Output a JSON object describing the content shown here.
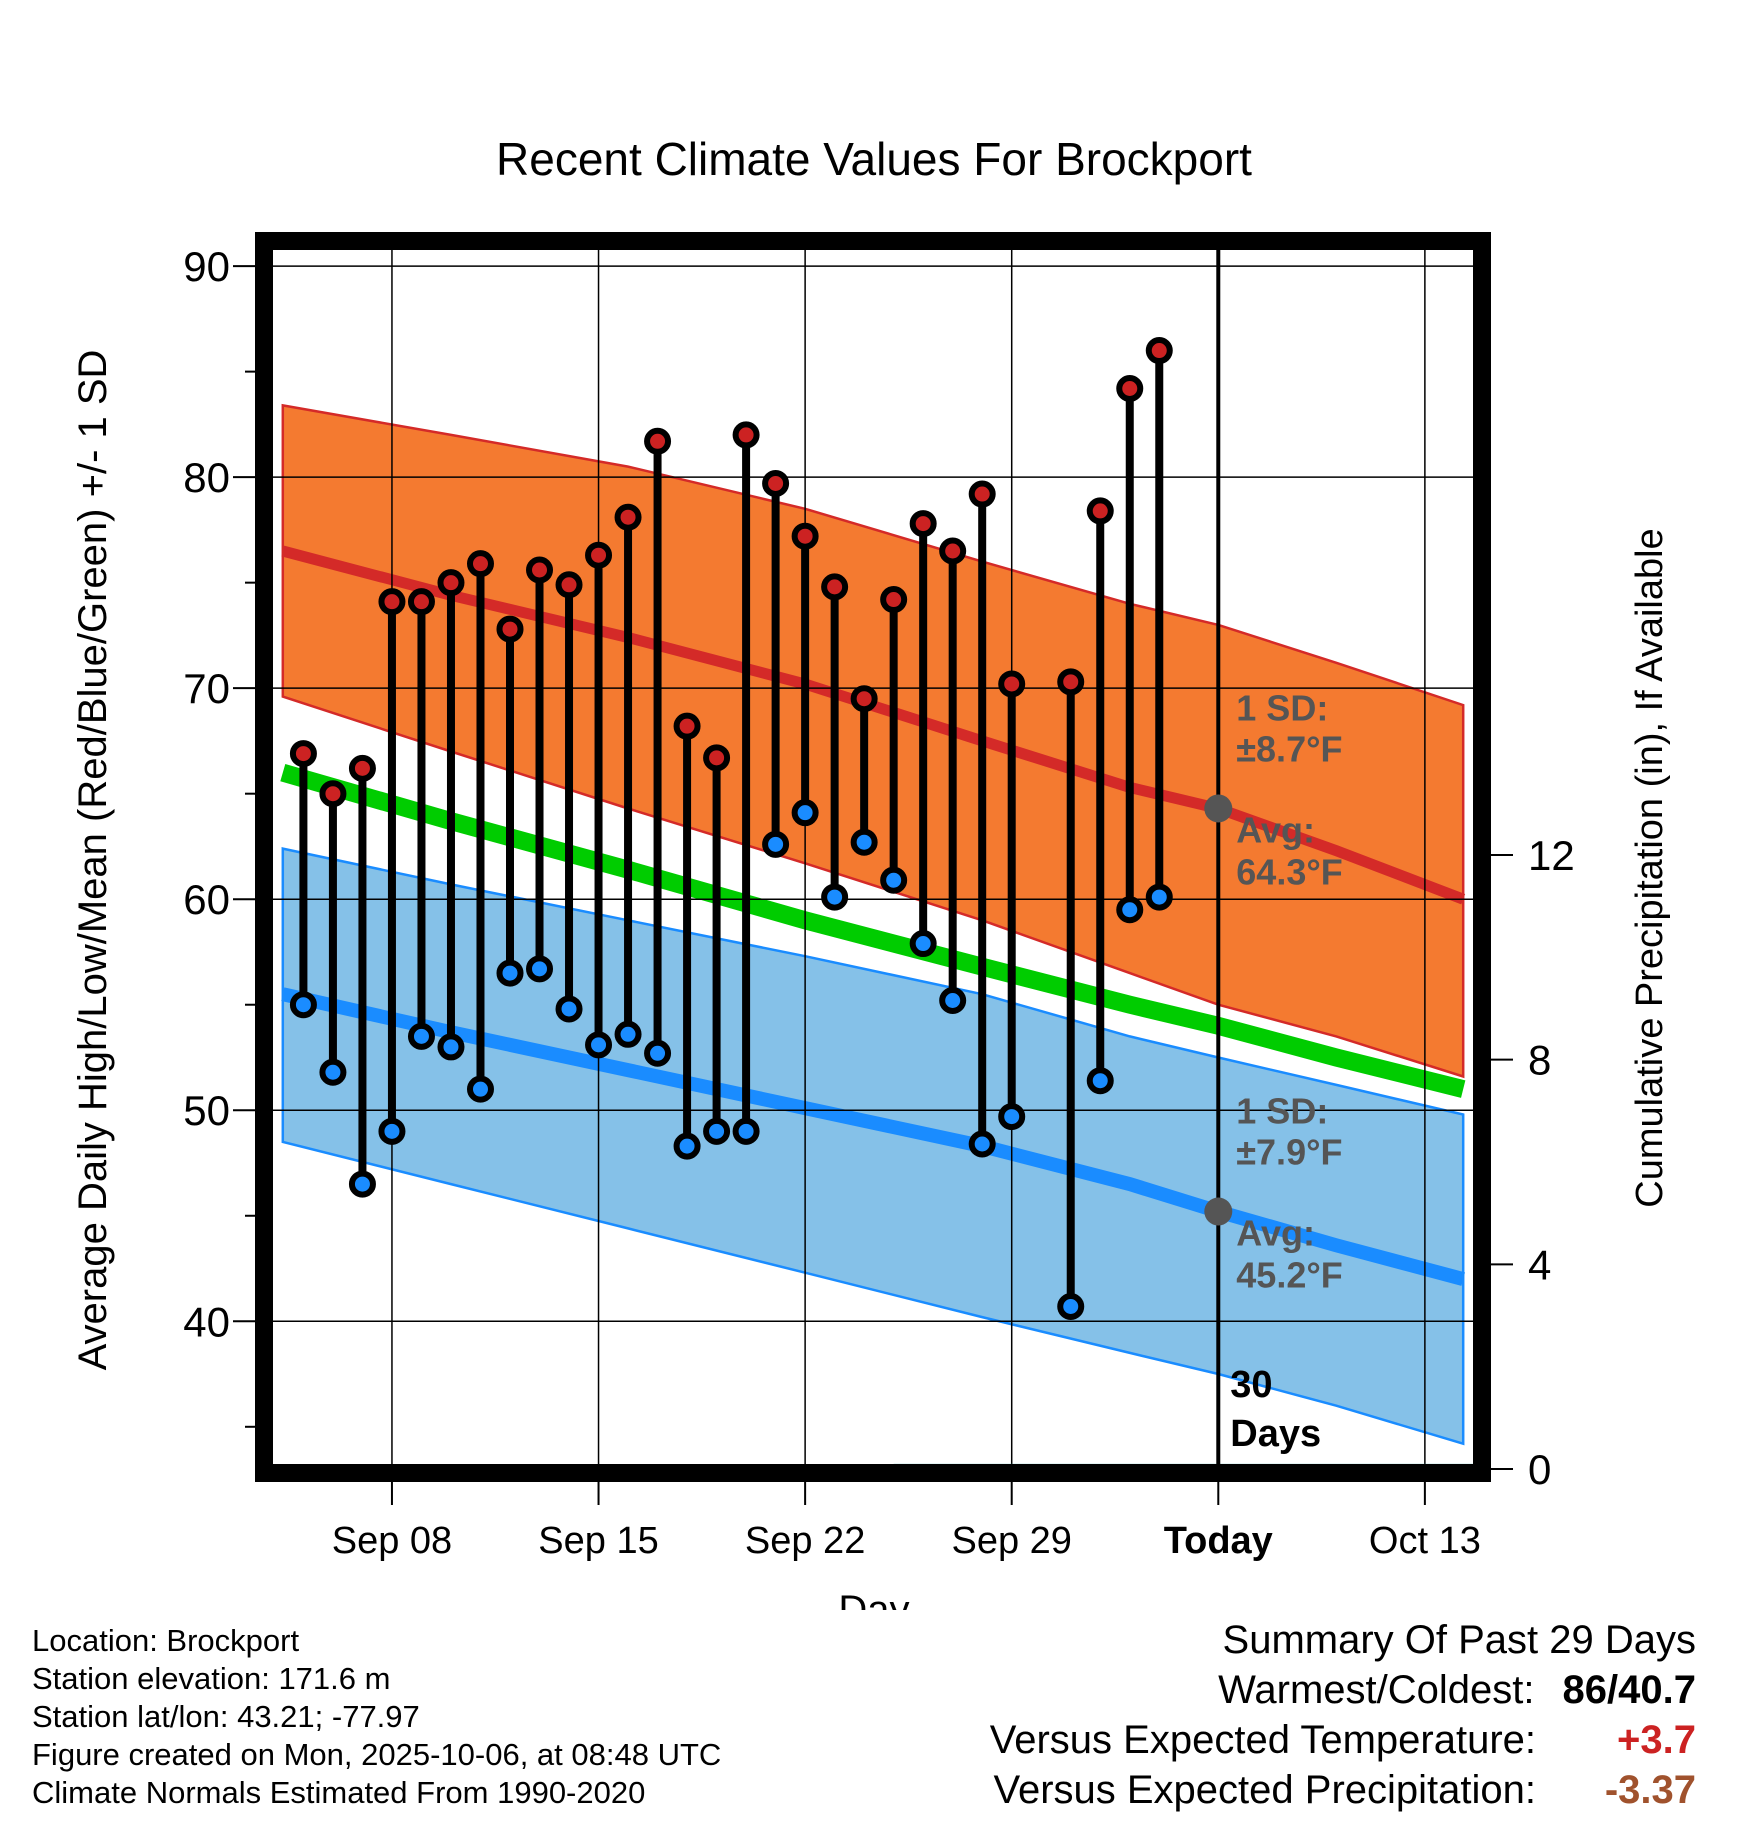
{
  "colors": {
    "high_band": "#f47a30",
    "high_line": "#d42a28",
    "low_band": "#85c1e8",
    "low_line": "#1a8cff",
    "mean_line": "#00cc00",
    "high_marker": "#cc2222",
    "low_marker": "#1a8cff",
    "avg_marker": "#555555",
    "annotation": "#555555",
    "precip_line": "#2aa8a8",
    "positive": "#cc2222",
    "negative": "#a0522d"
  },
  "chart_data": {
    "type": "line",
    "title": "Recent Climate Values For Brockport",
    "xlabel": "Day",
    "ylabel": "Average Daily High/Low/Mean (Red/Blue/Green) +/- 1 SD",
    "y2label": "Cumulative Precipitation (in), If Available",
    "x_tick_days": [
      8,
      15,
      22,
      29,
      36,
      43
    ],
    "x_tick_labels": [
      "Sep 08",
      "Sep 15",
      "Sep 22",
      "Sep 29",
      "Today",
      "Oct 13"
    ],
    "xlim": [
      3.8,
      44.8
    ],
    "ylim": [
      33,
      91
    ],
    "y_ticks": [
      40,
      50,
      60,
      70,
      80,
      90
    ],
    "y_tick_labels": [
      "40",
      "50",
      "60",
      "70",
      "80",
      "90"
    ],
    "y2lim": [
      0,
      23.92
    ],
    "y2_ticks": [
      0,
      4,
      8,
      12
    ],
    "y2_tick_labels": [
      "0",
      "4",
      "8",
      "12"
    ],
    "normals": {
      "x": [
        4.3,
        10,
        16,
        22,
        28,
        33,
        36,
        40,
        44.3
      ],
      "high_mean": [
        76.5,
        74.4,
        72.4,
        70.2,
        67.5,
        65.3,
        64.3,
        62.3,
        60.0
      ],
      "high_upper": [
        83.4,
        82.0,
        80.5,
        78.5,
        76.0,
        74.0,
        73.0,
        71.2,
        69.2
      ],
      "high_lower": [
        69.6,
        67.0,
        64.3,
        61.7,
        59.0,
        56.5,
        55.0,
        53.5,
        51.6
      ],
      "mean": [
        66.0,
        63.7,
        61.4,
        59.0,
        56.8,
        55.0,
        54.0,
        52.5,
        51.0
      ],
      "low_mean": [
        55.5,
        53.7,
        51.9,
        50.1,
        48.3,
        46.5,
        45.2,
        43.6,
        42.0
      ],
      "low_upper": [
        62.4,
        60.7,
        59.0,
        57.3,
        55.5,
        53.5,
        52.5,
        51.2,
        49.8
      ],
      "low_lower": [
        48.5,
        46.5,
        44.4,
        42.3,
        40.2,
        38.5,
        37.5,
        36.0,
        34.2
      ]
    },
    "days": [
      5,
      6,
      7,
      8,
      9,
      10,
      11,
      12,
      13,
      14,
      15,
      16,
      17,
      18,
      19,
      20,
      21,
      22,
      23,
      24,
      25,
      26,
      27,
      28,
      29,
      30,
      31,
      32,
      33,
      34,
      35
    ],
    "highs": [
      66.9,
      65.0,
      66.2,
      74.1,
      74.1,
      75.0,
      75.9,
      72.8,
      75.6,
      74.9,
      76.3,
      78.1,
      81.7,
      68.2,
      66.7,
      82.0,
      79.7,
      77.2,
      74.8,
      69.5,
      74.2,
      77.8,
      76.5,
      79.2,
      70.2,
      null,
      70.3,
      78.4,
      84.2,
      86.0,
      null
    ],
    "lows": [
      55.0,
      51.8,
      46.5,
      49.0,
      53.5,
      53.0,
      51.0,
      56.5,
      56.7,
      54.8,
      53.1,
      53.6,
      52.7,
      48.3,
      49.0,
      49.0,
      62.6,
      64.1,
      60.1,
      62.7,
      60.9,
      57.9,
      55.2,
      48.4,
      49.7,
      null,
      40.7,
      51.4,
      59.5,
      60.1,
      null
    ],
    "annotations": {
      "today_day": 36,
      "high_sd_label": "1 SD:",
      "high_sd_value": "±8.7°F",
      "high_avg_label": "Avg:",
      "high_avg_value": "64.3°F",
      "low_sd_label": "1 SD:",
      "low_sd_value": "±7.9°F",
      "low_avg_label": "Avg:",
      "low_avg_value": "45.2°F",
      "window_days": "30",
      "window_label": "Days"
    },
    "precipitation": {
      "x": [
        25,
        44.8
      ],
      "values": [
        0.07,
        0.07
      ]
    }
  },
  "footer": {
    "location": "Location: Brockport",
    "elevation": "Station elevation: 171.6 m",
    "latlon": "Station lat/lon: 43.21; -77.97",
    "created": "Figure created on Mon, 2025-10-06, at 08:48 UTC",
    "normals": "Climate Normals Estimated From 1990-2020"
  },
  "summary": {
    "title": "Summary Of Past 29 Days",
    "warmest_label": "Warmest/Coldest:",
    "warmest_value": "86",
    "coldest_value": "40.7",
    "temp_label": "Versus Expected Temperature:",
    "temp_value": "+3.7",
    "precip_label": "Versus Expected Precipitation:",
    "precip_value": "-3.37"
  }
}
